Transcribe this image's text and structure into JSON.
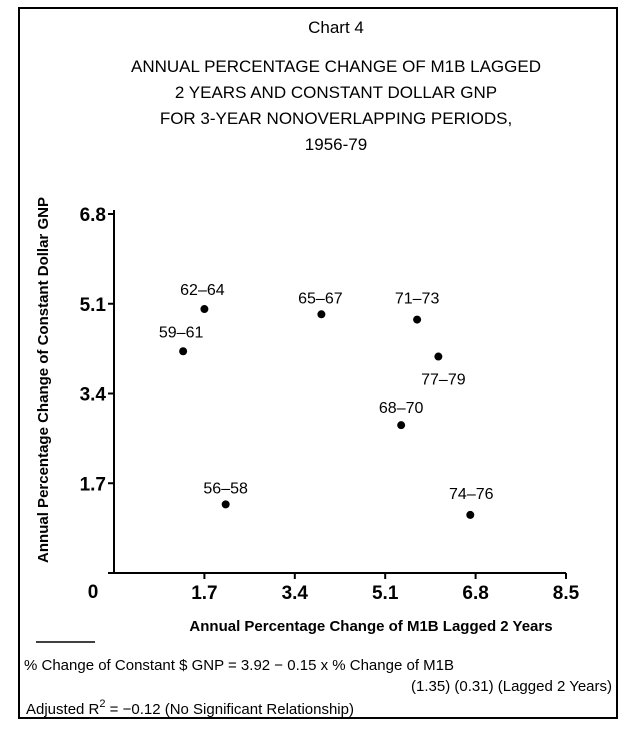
{
  "chart_data": {
    "type": "scatter",
    "title": [
      "Chart 4",
      "ANNUAL PERCENTAGE CHANGE OF M1B LAGGED",
      "2 YEARS AND CONSTANT DOLLAR GNP",
      "FOR 3-YEAR NONOVERLAPPING PERIODS,",
      "1956-79"
    ],
    "xlabel": "Annual Percentage Change of M1B Lagged 2 Years",
    "ylabel": "Annual Percentage Change of Constant Dollar GNP",
    "xlim": [
      0,
      8.5
    ],
    "xticks": [
      1.7,
      3.4,
      5.1,
      6.8,
      8.5
    ],
    "ylim": [
      0,
      6.8
    ],
    "yticks": [
      0,
      1.7,
      3.4,
      5.1,
      6.8
    ],
    "color": "#000000",
    "labels": [
      "62–64",
      "65–67",
      "71–73",
      "77–79",
      "59–61",
      "68–70",
      "56–58",
      "74–76"
    ],
    "x": [
      1.7,
      3.9,
      5.7,
      6.1,
      1.3,
      5.4,
      2.1,
      6.7
    ],
    "values": [
      5.0,
      4.9,
      4.8,
      4.1,
      4.2,
      2.8,
      1.3,
      1.1
    ],
    "annotations": [
      "% Change of Constant $ GNP = 3.92 − 0.15 x % Change of M1B",
      "(1.35)   (0.31)   (Lagged 2 Years)",
      "Adjusted R",
      "2",
      " = −0.12 (No Significant Relationship)"
    ]
  }
}
